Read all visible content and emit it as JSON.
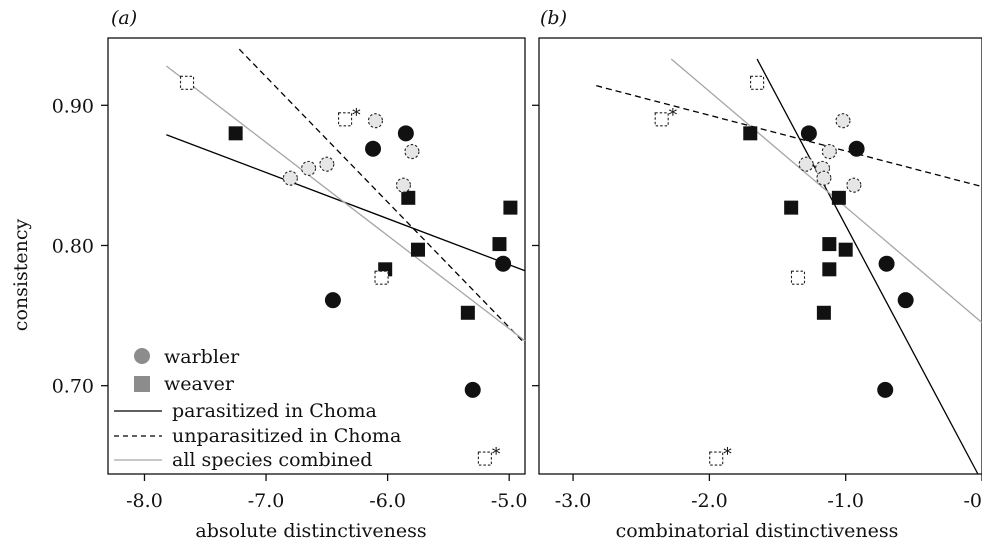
{
  "ylabel": "consistency",
  "colors": {
    "parasitized": "#000000",
    "unparasitized": "#000000",
    "combined": "#a6a6a6",
    "legend_marker": "#8c8c8c",
    "open_fill": "#e6e6e6"
  },
  "legend": {
    "warbler": "warbler",
    "weaver": "weaver",
    "parasitized": "parasitized in Choma",
    "unparasitized": "unparasitized in Choma",
    "combined": "all species combined"
  },
  "chart_data": [
    {
      "type": "scatter",
      "panel_label": "(a)",
      "xlabel": "absolute distinctiveness",
      "ylabel": "consistency",
      "xlim": [
        -8.3,
        -4.87
      ],
      "ylim": [
        0.637,
        0.948
      ],
      "xticks": [
        "-8.0",
        "-7.0",
        "-6.0",
        "-5.0"
      ],
      "xtick_values": [
        -8.0,
        -7.0,
        -6.0,
        -5.0
      ],
      "yticks": [
        "0.70",
        "0.80",
        "0.90"
      ],
      "ytick_values": [
        0.7,
        0.8,
        0.9
      ],
      "grid": false,
      "legend_position": "bottom-left",
      "series": [
        {
          "name": "warbler",
          "group": "parasitized",
          "marker": "circle-filled",
          "points": [
            {
              "x": -6.12,
              "y": 0.869
            },
            {
              "x": -5.85,
              "y": 0.88
            },
            {
              "x": -6.45,
              "y": 0.761
            },
            {
              "x": -5.05,
              "y": 0.787
            },
            {
              "x": -5.3,
              "y": 0.697
            }
          ]
        },
        {
          "name": "weaver",
          "group": "parasitized",
          "marker": "square-filled",
          "points": [
            {
              "x": -7.25,
              "y": 0.88
            },
            {
              "x": -5.83,
              "y": 0.834
            },
            {
              "x": -6.02,
              "y": 0.783
            },
            {
              "x": -5.75,
              "y": 0.797
            },
            {
              "x": -5.08,
              "y": 0.801
            },
            {
              "x": -4.99,
              "y": 0.827
            },
            {
              "x": -5.34,
              "y": 0.752
            }
          ]
        },
        {
          "name": "warbler",
          "group": "unparasitized",
          "marker": "circle-open",
          "points": [
            {
              "x": -6.8,
              "y": 0.848
            },
            {
              "x": -6.65,
              "y": 0.855
            },
            {
              "x": -6.5,
              "y": 0.858
            },
            {
              "x": -6.1,
              "y": 0.889
            },
            {
              "x": -5.8,
              "y": 0.867
            },
            {
              "x": -5.87,
              "y": 0.843
            }
          ]
        },
        {
          "name": "weaver",
          "group": "unparasitized",
          "marker": "square-open",
          "points": [
            {
              "x": -7.65,
              "y": 0.916,
              "star": false
            },
            {
              "x": -6.35,
              "y": 0.89,
              "star": true
            },
            {
              "x": -6.05,
              "y": 0.777,
              "star": false
            },
            {
              "x": -5.2,
              "y": 0.648,
              "star": true
            }
          ]
        }
      ],
      "lines": [
        {
          "name": "parasitized in Choma",
          "style": "solid-black",
          "x": [
            -7.82,
            -4.87
          ],
          "y": [
            0.879,
            0.782
          ]
        },
        {
          "name": "unparasitized in Choma",
          "style": "dashed-black",
          "x": [
            -7.22,
            -4.87
          ],
          "y": [
            0.94,
            0.73
          ]
        },
        {
          "name": "all species combined",
          "style": "solid-grey",
          "x": [
            -7.82,
            -4.87
          ],
          "y": [
            0.928,
            0.732
          ]
        }
      ]
    },
    {
      "type": "scatter",
      "panel_label": "(b)",
      "xlabel": "combinatorial distinctiveness",
      "ylabel": "",
      "xlim": [
        -3.25,
        0.0
      ],
      "ylim": [
        0.637,
        0.948
      ],
      "xticks": [
        "-3.0",
        "-2.0",
        "-1.0",
        "-0"
      ],
      "xtick_values": [
        -3.0,
        -2.0,
        -1.0,
        0.0
      ],
      "yticks": [],
      "ytick_values": [
        0.7,
        0.8,
        0.9
      ],
      "grid": false,
      "series": [
        {
          "name": "warbler",
          "group": "parasitized",
          "marker": "circle-filled",
          "points": [
            {
              "x": -1.27,
              "y": 0.88
            },
            {
              "x": -0.92,
              "y": 0.869
            },
            {
              "x": -0.7,
              "y": 0.787
            },
            {
              "x": -0.56,
              "y": 0.761
            },
            {
              "x": -0.71,
              "y": 0.697
            }
          ]
        },
        {
          "name": "weaver",
          "group": "parasitized",
          "marker": "square-filled",
          "points": [
            {
              "x": -1.7,
              "y": 0.88
            },
            {
              "x": -1.05,
              "y": 0.834
            },
            {
              "x": -1.4,
              "y": 0.827
            },
            {
              "x": -1.12,
              "y": 0.801
            },
            {
              "x": -1.0,
              "y": 0.797
            },
            {
              "x": -1.12,
              "y": 0.783
            },
            {
              "x": -1.16,
              "y": 0.752
            }
          ]
        },
        {
          "name": "warbler",
          "group": "unparasitized",
          "marker": "circle-open",
          "points": [
            {
              "x": -1.02,
              "y": 0.889
            },
            {
              "x": -1.12,
              "y": 0.867
            },
            {
              "x": -1.29,
              "y": 0.858
            },
            {
              "x": -1.17,
              "y": 0.855
            },
            {
              "x": -1.16,
              "y": 0.848
            },
            {
              "x": -0.94,
              "y": 0.843
            }
          ]
        },
        {
          "name": "weaver",
          "group": "unparasitized",
          "marker": "square-open",
          "points": [
            {
              "x": -1.65,
              "y": 0.916,
              "star": false
            },
            {
              "x": -2.35,
              "y": 0.89,
              "star": true
            },
            {
              "x": -1.35,
              "y": 0.777,
              "star": false
            },
            {
              "x": -1.95,
              "y": 0.648,
              "star": true
            }
          ]
        }
      ],
      "lines": [
        {
          "name": "parasitized in Choma",
          "style": "solid-black",
          "x": [
            -1.65,
            -0.03
          ],
          "y": [
            0.933,
            0.637
          ]
        },
        {
          "name": "unparasitized in Choma",
          "style": "dashed-black",
          "x": [
            -2.83,
            0.0
          ],
          "y": [
            0.914,
            0.842
          ]
        },
        {
          "name": "all species combined",
          "style": "solid-grey",
          "x": [
            -2.28,
            0.0
          ],
          "y": [
            0.933,
            0.745
          ]
        }
      ]
    }
  ]
}
